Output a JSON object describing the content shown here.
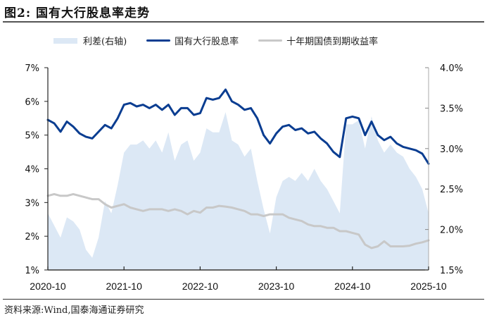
{
  "figure": {
    "title": "图2:  国有大行股息率走势",
    "source": "资料来源:Wind,国泰海通证券研究"
  },
  "legend": [
    {
      "label": "利差(右轴)",
      "type": "area",
      "color": "#dce8f5"
    },
    {
      "label": "国有大行股息率",
      "type": "line",
      "color": "#0a3d91"
    },
    {
      "label": "十年期国债到期收益率",
      "type": "line",
      "color": "#c8c8c8"
    }
  ],
  "colors": {
    "spread_area": "#dce8f5",
    "dividend_line": "#0a3d91",
    "bond_line": "#c8c8c8",
    "axis": "#333333",
    "right_axis": "#aaaaaa"
  },
  "chart_data": {
    "type": "line",
    "title": "国有大行股息率走势",
    "xlabel": "",
    "ylabel": "",
    "y2label": "利差(右轴)",
    "x_tick_labels": [
      "2020-10",
      "2021-10",
      "2022-10",
      "2023-10",
      "2024-10",
      "2025-10"
    ],
    "left_axis": {
      "ticks": [
        "7%",
        "6%",
        "5%",
        "4%",
        "3%",
        "2%",
        "1%"
      ],
      "ylim": [
        1,
        7
      ],
      "unit": "%"
    },
    "right_axis": {
      "ticks": [
        "4.0%",
        "3.5%",
        "3.0%",
        "2.5%",
        "2.0%",
        "1.5%"
      ],
      "ylim": [
        1.5,
        4.0
      ],
      "unit": "%"
    },
    "grid": false,
    "legend_position": "top",
    "x": [
      "2020-10",
      "2020-11",
      "2020-12",
      "2021-01",
      "2021-02",
      "2021-03",
      "2021-04",
      "2021-05",
      "2021-06",
      "2021-07",
      "2021-08",
      "2021-09",
      "2021-10",
      "2021-11",
      "2021-12",
      "2022-01",
      "2022-02",
      "2022-03",
      "2022-04",
      "2022-05",
      "2022-06",
      "2022-07",
      "2022-08",
      "2022-09",
      "2022-10",
      "2022-11",
      "2022-12",
      "2023-01",
      "2023-02",
      "2023-03",
      "2023-04",
      "2023-05",
      "2023-06",
      "2023-07",
      "2023-08",
      "2023-09",
      "2023-10",
      "2023-11",
      "2023-12",
      "2024-01",
      "2024-02",
      "2024-03",
      "2024-04",
      "2024-05",
      "2024-06",
      "2024-07",
      "2024-08",
      "2024-09",
      "2024-10",
      "2024-11",
      "2024-12",
      "2025-01",
      "2025-02",
      "2025-03",
      "2025-04",
      "2025-05",
      "2025-06",
      "2025-07",
      "2025-08",
      "2025-09",
      "2025-10"
    ],
    "series": [
      {
        "name": "国有大行股息率",
        "axis": "left",
        "values": [
          5.45,
          5.35,
          5.1,
          5.4,
          5.25,
          5.05,
          4.95,
          4.9,
          5.1,
          5.3,
          5.2,
          5.5,
          5.9,
          5.95,
          5.85,
          5.9,
          5.8,
          5.9,
          5.75,
          5.9,
          5.6,
          5.8,
          5.8,
          5.6,
          5.65,
          6.1,
          6.05,
          6.1,
          6.35,
          6.0,
          5.9,
          5.75,
          5.8,
          5.5,
          5.0,
          4.75,
          5.05,
          5.25,
          5.3,
          5.15,
          5.2,
          5.05,
          5.1,
          4.9,
          4.75,
          4.5,
          4.35,
          5.5,
          5.55,
          5.5,
          5.0,
          5.4,
          5.0,
          4.85,
          4.95,
          4.75,
          4.65,
          4.6,
          4.55,
          4.45,
          4.15
        ]
      },
      {
        "name": "十年期国债到期收益率",
        "axis": "left",
        "values": [
          3.2,
          3.25,
          3.2,
          3.2,
          3.25,
          3.2,
          3.15,
          3.1,
          3.1,
          2.95,
          2.85,
          2.9,
          2.95,
          2.85,
          2.8,
          2.75,
          2.8,
          2.8,
          2.8,
          2.75,
          2.8,
          2.75,
          2.65,
          2.75,
          2.7,
          2.85,
          2.85,
          2.9,
          2.88,
          2.85,
          2.8,
          2.75,
          2.65,
          2.65,
          2.6,
          2.65,
          2.65,
          2.65,
          2.55,
          2.5,
          2.45,
          2.35,
          2.3,
          2.3,
          2.25,
          2.25,
          2.15,
          2.15,
          2.1,
          2.05,
          1.75,
          1.65,
          1.7,
          1.85,
          1.7,
          1.7,
          1.7,
          1.72,
          1.78,
          1.82,
          1.88
        ]
      },
      {
        "name": "利差(右轴)",
        "axis": "right",
        "type": "area",
        "values": [
          2.2,
          2.05,
          1.9,
          2.15,
          2.1,
          2.0,
          1.75,
          1.65,
          1.9,
          2.35,
          2.2,
          2.55,
          2.95,
          3.05,
          3.05,
          3.1,
          3.0,
          3.1,
          2.95,
          3.2,
          2.85,
          3.05,
          3.1,
          2.85,
          2.95,
          3.25,
          3.2,
          3.2,
          3.45,
          3.1,
          3.05,
          2.9,
          3.0,
          2.6,
          2.25,
          1.95,
          2.4,
          2.6,
          2.65,
          2.6,
          2.7,
          2.6,
          2.75,
          2.6,
          2.5,
          2.35,
          2.2,
          3.3,
          3.3,
          3.35,
          3.0,
          3.4,
          3.1,
          2.95,
          3.05,
          2.95,
          2.9,
          2.75,
          2.65,
          2.5,
          2.2
        ]
      }
    ]
  }
}
